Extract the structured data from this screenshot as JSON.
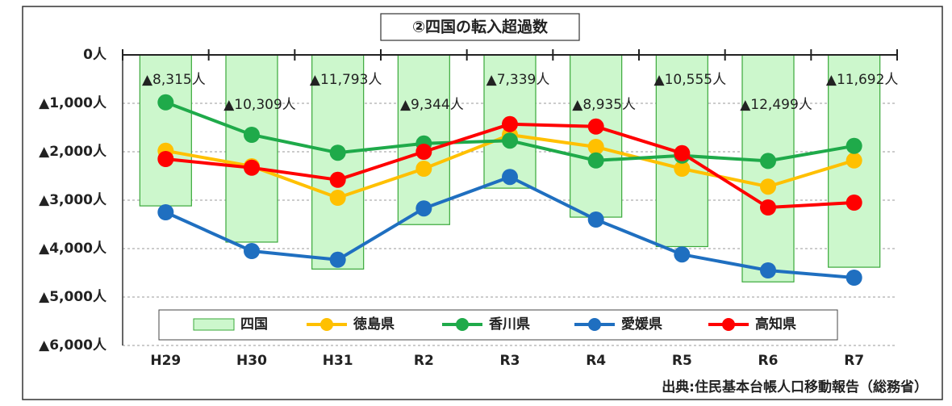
{
  "chart_data": {
    "type": "combo",
    "title": "②四国の転入超過数",
    "source": "出典:住民基本台帳人口移動報告（総務省）",
    "categories": [
      "H29",
      "H30",
      "H31",
      "R2",
      "R3",
      "R4",
      "R5",
      "R6",
      "R7"
    ],
    "ylim": [
      0,
      -6000
    ],
    "yticks": [
      {
        "value": 0,
        "label": "0人"
      },
      {
        "value": -1000,
        "label": "▲1,000人"
      },
      {
        "value": -2000,
        "label": "▲2,000人"
      },
      {
        "value": -3000,
        "label": "▲3,000人"
      },
      {
        "value": -4000,
        "label": "▲4,000人"
      },
      {
        "value": -5000,
        "label": "▲5,000人"
      },
      {
        "value": -6000,
        "label": "▲6,000人"
      }
    ],
    "y2lim": [
      0,
      -16000
    ],
    "grid": true,
    "series": [
      {
        "name": "四国",
        "type": "bar",
        "axis": "y2",
        "color": "#ccf7cc",
        "values": [
          -8315,
          -10309,
          -11793,
          -9344,
          -7339,
          -8935,
          -10555,
          -12499,
          -11692
        ],
        "value_labels": [
          "▲8,315人",
          "▲10,309人",
          "▲11,793人",
          "▲9,344人",
          "▲7,339人",
          "▲8,935人",
          "▲10,555人",
          "▲12,499人",
          "▲11,692人"
        ]
      },
      {
        "name": "徳島県",
        "type": "line",
        "color": "#ffc000",
        "values": [
          -1980,
          -2300,
          -2950,
          -2350,
          -1650,
          -1900,
          -2350,
          -2720,
          -2180
        ]
      },
      {
        "name": "香川県",
        "type": "line",
        "color": "#1faa4a",
        "values": [
          -980,
          -1650,
          -2020,
          -1830,
          -1770,
          -2180,
          -2080,
          -2190,
          -1880
        ]
      },
      {
        "name": "愛媛県",
        "type": "line",
        "color": "#1f6fc0",
        "values": [
          -3250,
          -4050,
          -4230,
          -3170,
          -2520,
          -3400,
          -4120,
          -4450,
          -4600
        ]
      },
      {
        "name": "高知県",
        "type": "line",
        "color": "#ff0000",
        "values": [
          -2150,
          -2330,
          -2580,
          -2000,
          -1430,
          -1480,
          -2030,
          -3150,
          -3050
        ]
      }
    ]
  }
}
